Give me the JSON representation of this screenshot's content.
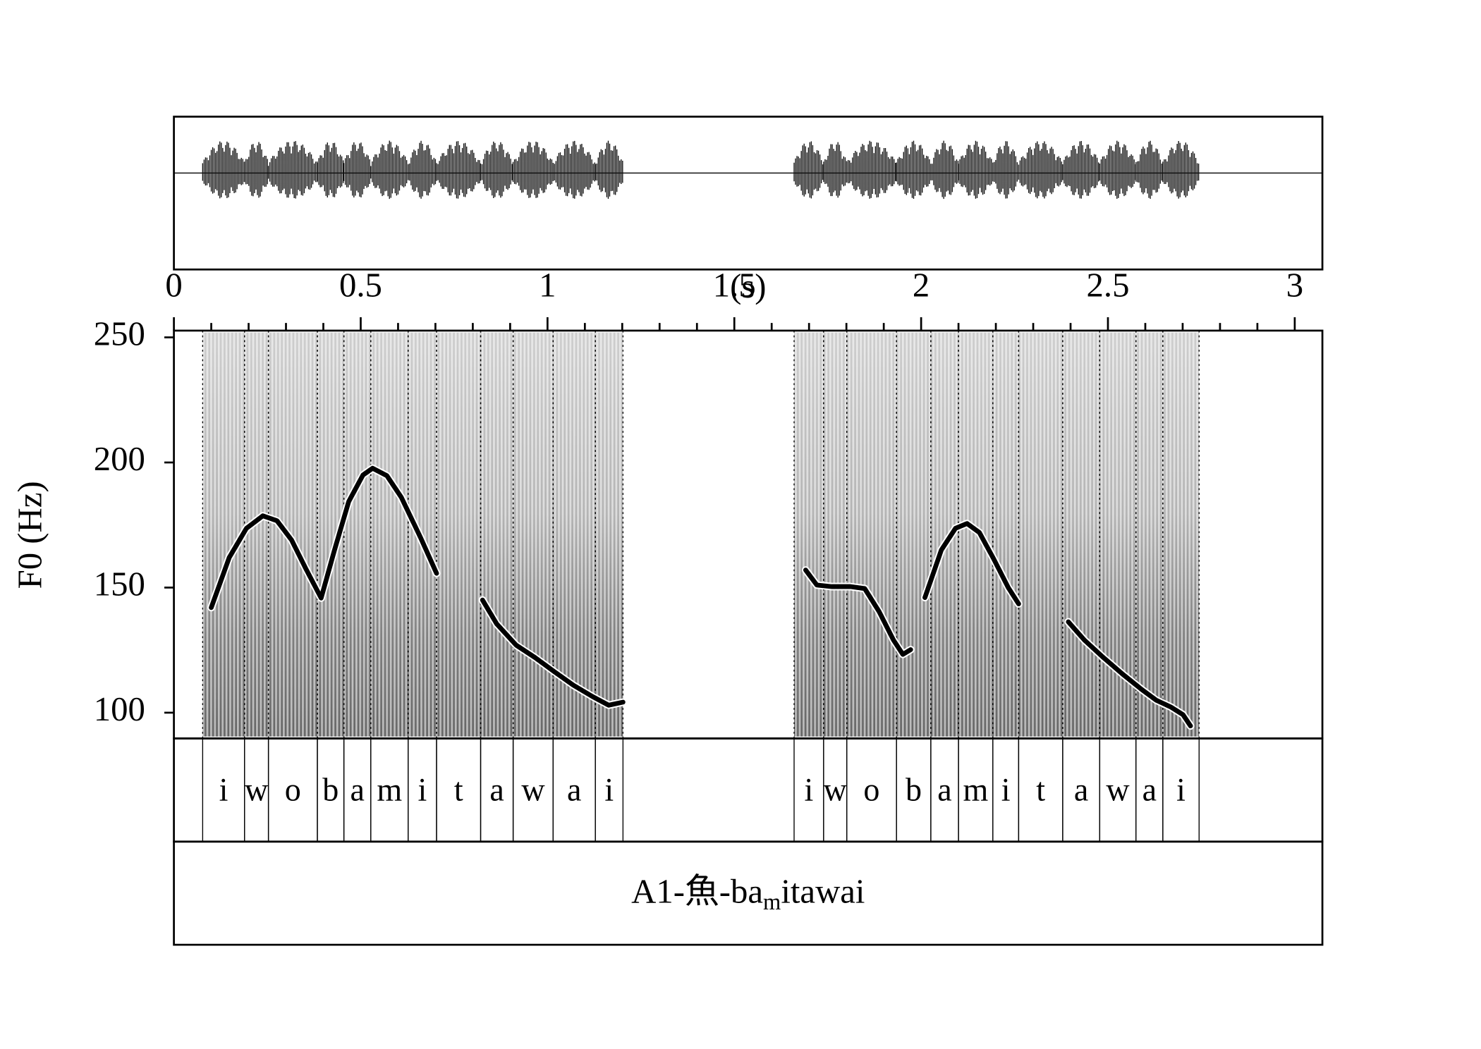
{
  "chart_data": {
    "type": "line",
    "x_label": "(s)",
    "y_label": "F0 (Hz)",
    "xlim": [
      0,
      3.074
    ],
    "xticks": [
      0,
      0.5,
      1,
      1.5,
      2,
      2.5,
      3
    ],
    "xticks_minor": [
      0.1,
      0.2,
      0.3,
      0.4,
      0.6,
      0.7,
      0.8,
      0.9,
      1.1,
      1.2,
      1.3,
      1.4,
      1.6,
      1.7,
      1.8,
      1.9,
      2.1,
      2.2,
      2.3,
      2.4,
      2.6,
      2.7,
      2.8,
      2.9
    ],
    "ylim": [
      89.7,
      252.7
    ],
    "yticks": [
      100,
      150,
      200,
      250
    ],
    "series": [
      {
        "color": "#000000",
        "x": [
          0.1,
          0.148,
          0.194,
          0.238,
          0.276,
          0.315,
          0.353,
          0.394,
          0.43,
          0.468,
          0.506,
          0.532,
          0.57,
          0.609,
          0.66,
          0.703
        ],
        "values": [
          142,
          162,
          173.7,
          178.7,
          176.7,
          169,
          157.6,
          145.8,
          165,
          184.4,
          195,
          197.7,
          194.7,
          186,
          170,
          155.7
        ]
      },
      {
        "color": "#000000",
        "x": [
          0.826,
          0.864,
          0.916,
          0.967,
          1.018,
          1.069,
          1.12,
          1.164,
          1.202
        ],
        "values": [
          145,
          135.5,
          127,
          122,
          116.4,
          111,
          106.5,
          103,
          104.2
        ]
      },
      {
        "color": "#000000",
        "x": [
          1.691,
          1.721,
          1.76,
          1.811,
          1.849,
          1.887,
          1.926,
          1.951,
          1.972
        ],
        "values": [
          157,
          151,
          150.4,
          150.4,
          149.6,
          140.5,
          129,
          123.3,
          125.2
        ]
      },
      {
        "color": "#000000",
        "x": [
          2.01,
          2.054,
          2.092,
          2.123,
          2.156,
          2.194,
          2.233,
          2.261
        ],
        "values": [
          146,
          165,
          173.7,
          175.6,
          172,
          161.5,
          150,
          143.5
        ]
      },
      {
        "color": "#000000",
        "x": [
          2.394,
          2.437,
          2.488,
          2.54,
          2.591,
          2.629,
          2.668,
          2.701,
          2.721
        ],
        "values": [
          136.3,
          129,
          122,
          115.3,
          109.2,
          105,
          102.3,
          99.2,
          94.7
        ]
      }
    ],
    "phone_intervals": [
      {
        "label": "i",
        "start": 0.077,
        "end": 0.189
      },
      {
        "label": "w",
        "start": 0.189,
        "end": 0.253
      },
      {
        "label": "o",
        "start": 0.253,
        "end": 0.384
      },
      {
        "label": "b",
        "start": 0.384,
        "end": 0.455
      },
      {
        "label": "a",
        "start": 0.455,
        "end": 0.527
      },
      {
        "label": "m",
        "start": 0.527,
        "end": 0.627
      },
      {
        "label": "i",
        "start": 0.627,
        "end": 0.703
      },
      {
        "label": "t",
        "start": 0.703,
        "end": 0.821
      },
      {
        "label": "a",
        "start": 0.821,
        "end": 0.908
      },
      {
        "label": "w",
        "start": 0.908,
        "end": 1.015
      },
      {
        "label": "a",
        "start": 1.015,
        "end": 1.128
      },
      {
        "label": "i",
        "start": 1.128,
        "end": 1.202
      },
      {
        "label": "i",
        "start": 1.66,
        "end": 1.739
      },
      {
        "label": "w",
        "start": 1.739,
        "end": 1.801
      },
      {
        "label": "o",
        "start": 1.801,
        "end": 1.934
      },
      {
        "label": "b",
        "start": 1.934,
        "end": 2.026
      },
      {
        "label": "a",
        "start": 2.026,
        "end": 2.1
      },
      {
        "label": "m",
        "start": 2.1,
        "end": 2.192
      },
      {
        "label": "i",
        "start": 2.192,
        "end": 2.261
      },
      {
        "label": "t",
        "start": 2.261,
        "end": 2.379
      },
      {
        "label": "a",
        "start": 2.379,
        "end": 2.478
      },
      {
        "label": "w",
        "start": 2.478,
        "end": 2.575
      },
      {
        "label": "a",
        "start": 2.575,
        "end": 2.647
      },
      {
        "label": "i",
        "start": 2.647,
        "end": 2.744
      }
    ],
    "utterance_label": [
      "A1-魚-ba",
      "m",
      "itawai"
    ]
  }
}
